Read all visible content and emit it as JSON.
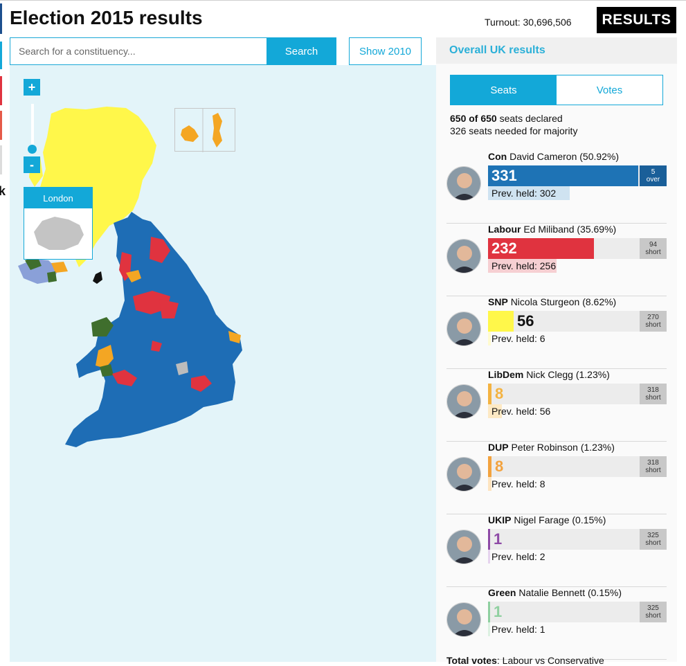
{
  "header": {
    "title": "Election 2015 results",
    "turnout": "Turnout: 30,696,506",
    "results_label": "RESULTS"
  },
  "search": {
    "placeholder": "Search for a constituency...",
    "button_label": "Search",
    "show2010_label": "Show 2010"
  },
  "map": {
    "zoom_in": "+",
    "zoom_out": "-",
    "london_label": "London",
    "colors": {
      "sea": "#e3f4f9",
      "con": "#1e6db5",
      "lab": "#e0333f",
      "snp": "#fff74a",
      "libdem": "#f4a623",
      "plaid": "#3f6e2d",
      "speaker": "#bcbcbc",
      "ni": "#8aa0d8"
    }
  },
  "panel": {
    "heading": "Overall UK results",
    "tabs": {
      "seats": "Seats",
      "votes": "Votes"
    },
    "declared_count": "650 of 650",
    "declared_suffix": " seats declared",
    "majority_line": "326 seats needed for majority",
    "total_votes_label": "Total votes",
    "total_votes_text": ": Labour vs Conservative"
  },
  "parties": [
    {
      "abbr": "Con",
      "leader": "David Cameron (50.92%)",
      "seats": "331",
      "seat_share": 0.993,
      "prev": "Prev. held: 302",
      "prev_share": 0.54,
      "status_num": "5",
      "status_word": "over",
      "color": "#1e73b5",
      "prev_color": "#cfe3f1",
      "status_bg": "#1a5f99",
      "status_fg": "#ffffff",
      "num_color": "#ffffff"
    },
    {
      "abbr": "Labour",
      "leader": "Ed Miliband (35.69%)",
      "seats": "232",
      "seat_share": 0.7,
      "prev": "Prev. held: 256",
      "prev_share": 0.45,
      "status_num": "94",
      "status_word": "short",
      "color": "#e0333f",
      "prev_color": "#f6cfd2",
      "status_bg": "#c8c8c8",
      "status_fg": "#333333",
      "num_color": "#ffffff"
    },
    {
      "abbr": "SNP",
      "leader": "Nicola Sturgeon (8.62%)",
      "seats": "56",
      "seat_share": 0.17,
      "prev": "Prev. held: 6",
      "prev_share": 0.02,
      "status_num": "270",
      "status_word": "short",
      "color": "#fff74a",
      "prev_color": "#fffbd0",
      "status_bg": "#c8c8c8",
      "status_fg": "#333333",
      "num_color": "#111111"
    },
    {
      "abbr": "LibDem",
      "leader": "Nick Clegg (1.23%)",
      "seats": "8",
      "seat_share": 0.024,
      "prev": "Prev. held: 56",
      "prev_share": 0.09,
      "status_num": "318",
      "status_word": "short",
      "color": "#f4b342",
      "prev_color": "#fde9c4",
      "status_bg": "#c8c8c8",
      "status_fg": "#333333",
      "num_color": "#f4b342"
    },
    {
      "abbr": "DUP",
      "leader": "Peter Robinson (1.23%)",
      "seats": "8",
      "seat_share": 0.024,
      "prev": "Prev. held: 8",
      "prev_share": 0.024,
      "status_num": "318",
      "status_word": "short",
      "color": "#f3a33f",
      "prev_color": "#fde4c0",
      "status_bg": "#c8c8c8",
      "status_fg": "#333333",
      "num_color": "#f3a33f"
    },
    {
      "abbr": "UKIP",
      "leader": "Nigel Farage (0.15%)",
      "seats": "1",
      "seat_share": 0.007,
      "prev": "Prev. held: 2",
      "prev_share": 0.009,
      "status_num": "325",
      "status_word": "short",
      "color": "#8e4aa6",
      "prev_color": "#e6d4ee",
      "status_bg": "#c8c8c8",
      "status_fg": "#333333",
      "num_color": "#8e4aa6"
    },
    {
      "abbr": "Green",
      "leader": "Natalie Bennett (0.15%)",
      "seats": "1",
      "seat_share": 0.007,
      "prev": "Prev. held: 1",
      "prev_share": 0.007,
      "status_num": "325",
      "status_word": "short",
      "color": "#8fd0a0",
      "prev_color": "#dcf1e2",
      "status_bg": "#c8c8c8",
      "status_fg": "#333333",
      "num_color": "#8fd0a0"
    }
  ]
}
